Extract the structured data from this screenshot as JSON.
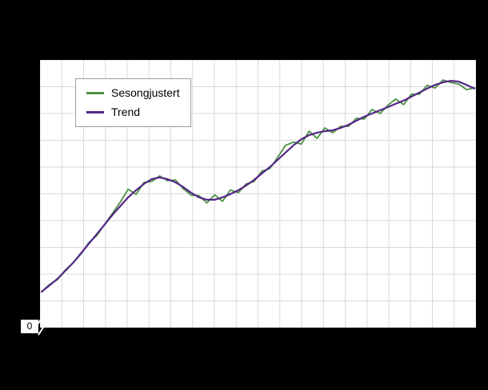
{
  "figure": {
    "background_color": "#000000",
    "plot_background_color": "#ffffff",
    "grid_color": "#d9d9d9",
    "zero_label": "0"
  },
  "legend": {
    "position": "top-left",
    "items": [
      {
        "label": "Sesongjustert",
        "color": "#4c9141"
      },
      {
        "label": "Trend",
        "color": "#542788"
      }
    ]
  },
  "chart_data": {
    "type": "line",
    "title": "",
    "xlabel": "",
    "ylabel": "",
    "x": [
      0,
      1,
      2,
      3,
      4,
      5,
      6,
      7,
      8,
      9,
      10,
      11,
      12,
      13,
      14,
      15,
      16,
      17,
      18,
      19,
      20,
      21,
      22,
      23,
      24,
      25,
      26,
      27,
      28,
      29,
      30,
      31,
      32,
      33,
      34,
      35,
      36,
      37,
      38,
      39,
      40,
      41,
      42,
      43,
      44,
      45,
      46,
      47,
      48,
      49,
      50,
      51,
      52,
      53,
      54,
      55
    ],
    "series": [
      {
        "name": "Sesongjustert",
        "color": "#4c9141",
        "line_width": 1.8,
        "values": [
          13.4,
          16.1,
          17.9,
          21.5,
          24.2,
          27.5,
          31.8,
          34.4,
          38.5,
          42.7,
          46.9,
          51.7,
          49.8,
          54.2,
          54.6,
          56.7,
          54.9,
          55.2,
          51.9,
          49.5,
          49.3,
          46.6,
          49.6,
          47.2,
          51.4,
          50.4,
          53.7,
          54.6,
          58.5,
          59.4,
          63.6,
          68.1,
          69.3,
          68.6,
          73.4,
          70.7,
          74.6,
          72.8,
          75.2,
          75.2,
          78.2,
          77.9,
          81.5,
          80.0,
          83.0,
          85.4,
          83.3,
          87.2,
          87.2,
          90.5,
          89.5,
          92.5,
          91.6,
          91.0,
          88.9,
          89.6
        ]
      },
      {
        "name": "Trend",
        "color": "#542788",
        "line_width": 2.2,
        "values": [
          13.4,
          15.8,
          18.2,
          21.2,
          24.2,
          27.8,
          31.3,
          34.9,
          38.5,
          42.1,
          45.4,
          48.7,
          51.3,
          53.7,
          55.5,
          56.1,
          55.5,
          54.3,
          52.5,
          50.4,
          48.7,
          47.8,
          47.8,
          48.7,
          49.9,
          51.3,
          53.1,
          55.2,
          57.6,
          60.0,
          62.7,
          65.4,
          68.1,
          70.4,
          71.9,
          72.8,
          73.4,
          73.7,
          74.6,
          75.8,
          77.3,
          78.8,
          80.0,
          81.2,
          82.4,
          83.6,
          84.8,
          86.3,
          87.8,
          89.3,
          90.7,
          91.6,
          92.2,
          91.9,
          90.7,
          89.3
        ]
      }
    ],
    "ylim": [
      0,
      100
    ],
    "grid": true,
    "grid_columns": 20,
    "grid_rows": 10,
    "legend_position": "top-left",
    "y_axis_break": true
  }
}
